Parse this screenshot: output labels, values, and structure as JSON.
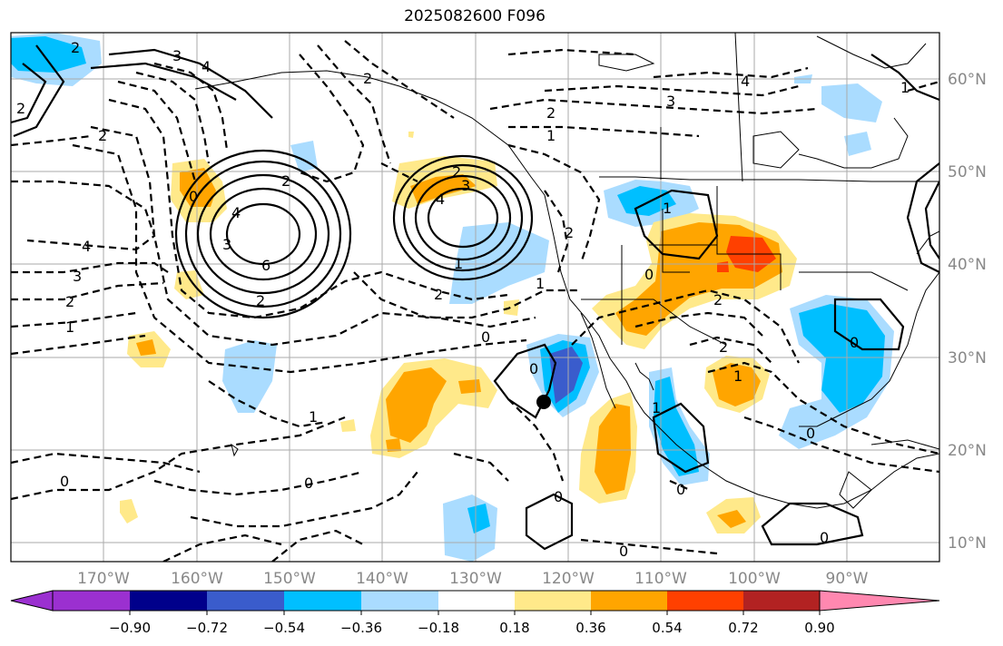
{
  "title": "2025082600 F096",
  "map": {
    "lat_labels": [
      "60°N",
      "50°N",
      "40°N",
      "30°N",
      "20°N",
      "10°N"
    ],
    "lon_labels": [
      "170°W",
      "160°W",
      "150°W",
      "140°W",
      "130°W",
      "120°W",
      "110°W",
      "100°W",
      "90°W"
    ],
    "contour_labels": [
      "2",
      "3",
      "4",
      "2",
      "2",
      "2",
      "3",
      "4",
      "2",
      "1",
      "0",
      "4",
      "3",
      "2",
      "1",
      "1",
      "2",
      "6",
      "4",
      "3",
      "2",
      "2",
      "1",
      "2",
      "3",
      "4",
      "2",
      "1",
      "0",
      "1",
      "2",
      "1",
      "0",
      "0",
      "2",
      "1",
      "0",
      "0",
      "0",
      "0",
      "0",
      "0",
      "0",
      "0",
      "1"
    ],
    "marker": "storm-position-dot"
  },
  "colorbar": {
    "ticks": [
      "−0.90",
      "−0.72",
      "−0.54",
      "−0.36",
      "−0.18",
      "0.18",
      "0.36",
      "0.54",
      "0.72",
      "0.90"
    ],
    "colors": [
      "#9b30d0",
      "#00008b",
      "#3a5ccc",
      "#00bfff",
      "#aadcff",
      "#ffffff",
      "#ffe98a",
      "#ffa500",
      "#ff4000",
      "#b22222",
      "#ff88b0"
    ]
  }
}
